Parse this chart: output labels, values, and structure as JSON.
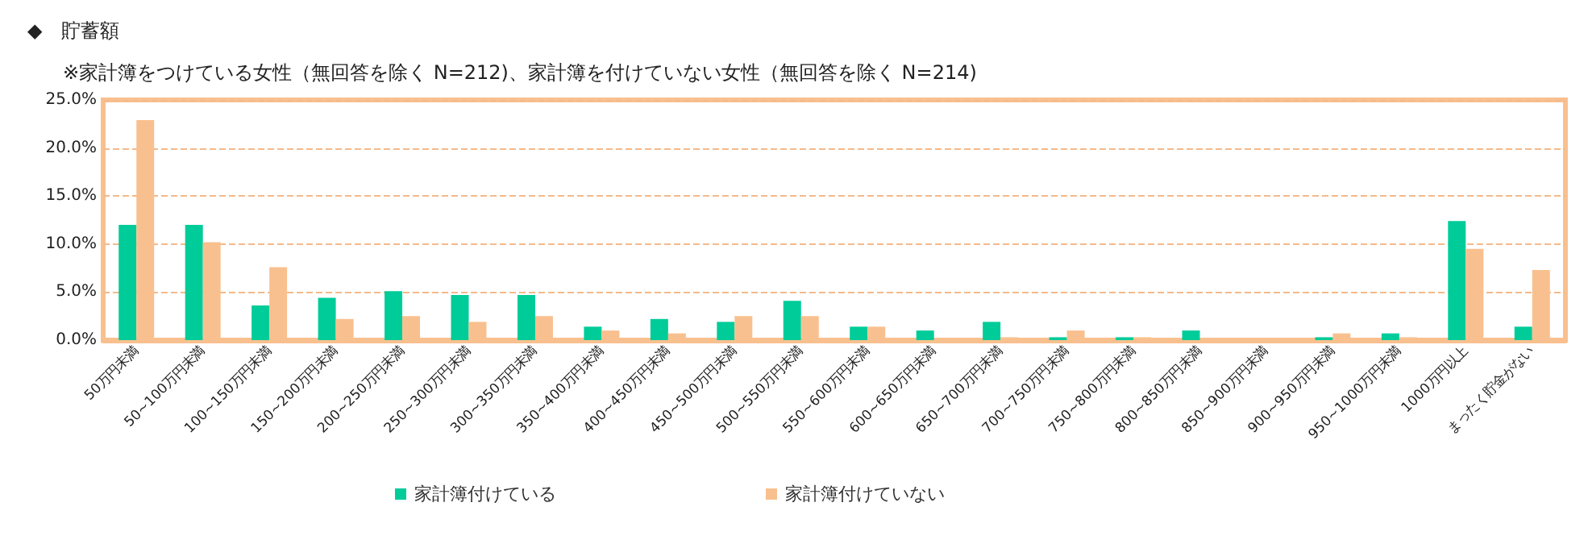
{
  "chart_data": {
    "type": "bar",
    "title": "◆　貯蓄額",
    "subtitle": "※家計簿をつけている女性（無回答を除く N=212)、家計簿を付けていない女性（無回答を除く N=214)",
    "categories": [
      "50万円未満",
      "50~100万円未満",
      "100~150万円未満",
      "150~200万円未満",
      "200~250万円未満",
      "250~300万円未満",
      "300~350万円未満",
      "350~400万円未満",
      "400~450万円未満",
      "450~500万円未満",
      "500~550万円未満",
      "550~600万円未満",
      "600~650万円未満",
      "650~700万円未満",
      "700~750万円未満",
      "750~800万円未満",
      "800~850万円未満",
      "850~900万円未満",
      "900~950万円未満",
      "950~1000万円未満",
      "1000万円以上",
      "まったく貯金がない"
    ],
    "series": [
      {
        "name": "家計簿付けている",
        "color": "#00cc99",
        "values": [
          12.0,
          12.0,
          3.6,
          4.4,
          5.1,
          4.7,
          4.7,
          1.4,
          2.2,
          1.9,
          4.1,
          1.4,
          1.0,
          1.9,
          0.3,
          0.3,
          1.0,
          0,
          0.3,
          0.7,
          12.4,
          1.4
        ]
      },
      {
        "name": "家計簿付けていない",
        "color": "#f9c08f",
        "values": [
          22.9,
          10.2,
          7.6,
          2.2,
          2.5,
          1.9,
          2.5,
          1.0,
          0.7,
          2.5,
          2.5,
          1.4,
          0,
          0.3,
          1.0,
          0.3,
          0,
          0,
          0.7,
          0.3,
          9.5,
          7.3
        ]
      }
    ],
    "ylim": [
      0,
      25
    ],
    "yticks": [
      {
        "value": 0,
        "label": "0.0%"
      },
      {
        "value": 5,
        "label": "5.0%"
      },
      {
        "value": 10,
        "label": "10.0%"
      },
      {
        "value": 15,
        "label": "15.0%"
      },
      {
        "value": 20,
        "label": "20.0%"
      },
      {
        "value": 25,
        "label": "25.0%"
      }
    ],
    "grid": "y",
    "legend": "bottom"
  }
}
